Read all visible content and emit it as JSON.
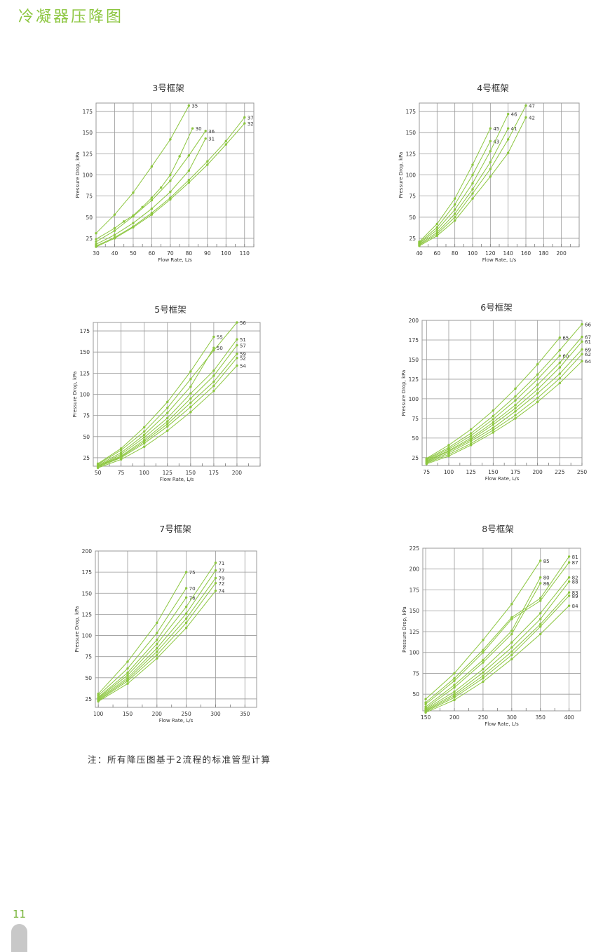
{
  "page_title": "冷凝器压降图",
  "footnote": "注：所有降压图基于2流程的标准管型计算",
  "page_number": "11",
  "colors": {
    "accent": "#8cc63f",
    "line": "#8cc63f",
    "grid": "#999999"
  },
  "chart_data": [
    {
      "type": "line",
      "title": "3号框架",
      "xlabel": "Flow Rate, L/s",
      "ylabel": "Pressure Drop, kPa",
      "xlim": [
        30,
        115
      ],
      "ylim": [
        15,
        185
      ],
      "xticks": [
        30,
        40,
        50,
        60,
        70,
        80,
        90,
        100,
        110
      ],
      "yticks": [
        25,
        50,
        75,
        100,
        125,
        150,
        175
      ],
      "series": [
        {
          "name": "35",
          "x": [
            30,
            40,
            50,
            60,
            70,
            80
          ],
          "y": [
            31,
            53,
            79,
            110,
            142,
            182
          ]
        },
        {
          "name": "30",
          "x": [
            30,
            40,
            45,
            50,
            55,
            60,
            65,
            70,
            75,
            82
          ],
          "y": [
            24,
            37,
            45,
            52,
            62,
            73,
            85,
            100,
            122,
            155
          ]
        },
        {
          "name": "36",
          "x": [
            30,
            40,
            50,
            60,
            70,
            80,
            89
          ],
          "y": [
            21,
            34,
            51,
            70,
            93,
            123,
            152
          ]
        },
        {
          "name": "31",
          "x": [
            30,
            40,
            50,
            60,
            70,
            80,
            89
          ],
          "y": [
            18,
            29,
            43,
            60,
            80,
            105,
            143
          ]
        },
        {
          "name": "37",
          "x": [
            30,
            40,
            50,
            60,
            70,
            80,
            90,
            100,
            110
          ],
          "y": [
            16,
            26,
            39,
            55,
            73,
            94,
            116,
            140,
            168
          ]
        },
        {
          "name": "32",
          "x": [
            30,
            40,
            50,
            60,
            70,
            80,
            90,
            100,
            110
          ],
          "y": [
            15,
            25,
            38,
            53,
            71,
            91,
            112,
            136,
            161
          ]
        }
      ]
    },
    {
      "type": "line",
      "title": "4号框架",
      "xlabel": "Flow Rate, L/s",
      "ylabel": "Pressure Drop, kPa",
      "xlim": [
        40,
        220
      ],
      "ylim": [
        15,
        185
      ],
      "xticks": [
        40,
        60,
        80,
        100,
        120,
        140,
        160,
        180,
        200
      ],
      "yticks": [
        25,
        50,
        75,
        100,
        125,
        150,
        175
      ],
      "series": [
        {
          "name": "45",
          "x": [
            40,
            60,
            80,
            100,
            120
          ],
          "y": [
            21,
            42,
            72,
            112,
            155
          ]
        },
        {
          "name": "43",
          "x": [
            40,
            60,
            80,
            100,
            120
          ],
          "y": [
            20,
            38,
            65,
            100,
            140
          ]
        },
        {
          "name": "46",
          "x": [
            40,
            60,
            80,
            100,
            120,
            140
          ],
          "y": [
            19,
            35,
            59,
            90,
            128,
            172
          ]
        },
        {
          "name": "41",
          "x": [
            40,
            60,
            80,
            100,
            120,
            140
          ],
          "y": [
            18,
            32,
            54,
            83,
            115,
            155
          ]
        },
        {
          "name": "47",
          "x": [
            40,
            60,
            80,
            100,
            120,
            140,
            160
          ],
          "y": [
            17,
            30,
            50,
            78,
            107,
            142,
            182
          ]
        },
        {
          "name": "42",
          "x": [
            40,
            60,
            80,
            100,
            120,
            140,
            160
          ],
          "y": [
            16,
            28,
            46,
            72,
            98,
            126,
            168
          ]
        }
      ]
    },
    {
      "type": "line",
      "title": "5号框架",
      "xlabel": "Flow Rate, L/s",
      "ylabel": "Pressure Drop, kPa",
      "xlim": [
        45,
        225
      ],
      "ylim": [
        15,
        185
      ],
      "xticks": [
        50,
        75,
        100,
        125,
        150,
        175,
        200
      ],
      "yticks": [
        25,
        50,
        75,
        100,
        125,
        150,
        175
      ],
      "series": [
        {
          "name": "55",
          "x": [
            50,
            75,
            100,
            125,
            150,
            175
          ],
          "y": [
            18,
            36,
            61,
            91,
            127,
            168
          ]
        },
        {
          "name": "56",
          "x": [
            50,
            75,
            100,
            125,
            150,
            175,
            200
          ],
          "y": [
            17,
            34,
            56,
            84,
            118,
            152,
            185
          ]
        },
        {
          "name": "50",
          "x": [
            50,
            75,
            100,
            125,
            150,
            175
          ],
          "y": [
            16,
            31,
            52,
            78,
            109,
            155
          ]
        },
        {
          "name": "51",
          "x": [
            50,
            75,
            100,
            125,
            150,
            175,
            200
          ],
          "y": [
            15,
            29,
            49,
            72,
            101,
            128,
            165
          ]
        },
        {
          "name": "57",
          "x": [
            50,
            75,
            100,
            125,
            150,
            175,
            200
          ],
          "y": [
            15,
            27,
            46,
            68,
            95,
            122,
            158
          ]
        },
        {
          "name": "59",
          "x": [
            50,
            75,
            100,
            125,
            150,
            175,
            200
          ],
          "y": [
            14,
            26,
            44,
            65,
            90,
            115,
            148
          ]
        },
        {
          "name": "52",
          "x": [
            50,
            75,
            100,
            125,
            150,
            175,
            200
          ],
          "y": [
            14,
            25,
            42,
            62,
            85,
            110,
            143
          ]
        },
        {
          "name": "54",
          "x": [
            50,
            75,
            100,
            125,
            150,
            175,
            200
          ],
          "y": [
            13,
            23,
            38,
            57,
            79,
            104,
            134
          ]
        }
      ]
    },
    {
      "type": "line",
      "title": "6号框架",
      "xlabel": "Flow Rate, L/s",
      "ylabel": "Pressure Drop, kPa",
      "xlim": [
        70,
        250
      ],
      "ylim": [
        15,
        200
      ],
      "xticks": [
        75,
        100,
        125,
        150,
        175,
        200,
        225,
        250
      ],
      "yticks": [
        25,
        50,
        75,
        100,
        125,
        150,
        175,
        200
      ],
      "series": [
        {
          "name": "65",
          "x": [
            75,
            100,
            125,
            150,
            175,
            200,
            225
          ],
          "y": [
            24,
            41,
            61,
            85,
            113,
            144,
            178
          ]
        },
        {
          "name": "66",
          "x": [
            75,
            100,
            125,
            150,
            175,
            200,
            225,
            250
          ],
          "y": [
            23,
            38,
            56,
            78,
            103,
            131,
            162,
            195
          ]
        },
        {
          "name": "60",
          "x": [
            75,
            100,
            125,
            150,
            175,
            200,
            225
          ],
          "y": [
            22,
            36,
            53,
            74,
            98,
            125,
            155
          ]
        },
        {
          "name": "67",
          "x": [
            75,
            100,
            125,
            150,
            175,
            200,
            225,
            250
          ],
          "y": [
            21,
            34,
            50,
            70,
            92,
            118,
            146,
            179
          ]
        },
        {
          "name": "61",
          "x": [
            75,
            100,
            125,
            150,
            175,
            200,
            225,
            250
          ],
          "y": [
            20,
            33,
            48,
            67,
            88,
            112,
            140,
            173
          ]
        },
        {
          "name": "69",
          "x": [
            75,
            100,
            125,
            150,
            175,
            200,
            225,
            250
          ],
          "y": [
            19,
            31,
            46,
            63,
            84,
            107,
            132,
            163
          ]
        },
        {
          "name": "62",
          "x": [
            75,
            100,
            125,
            150,
            175,
            200,
            225,
            250
          ],
          "y": [
            18,
            29,
            43,
            60,
            79,
            101,
            126,
            157
          ]
        },
        {
          "name": "64",
          "x": [
            75,
            100,
            125,
            150,
            175,
            200,
            225,
            250
          ],
          "y": [
            17,
            27,
            41,
            57,
            75,
            96,
            120,
            148
          ]
        }
      ]
    },
    {
      "type": "line",
      "title": "7号框架",
      "xlabel": "Flow Rate, L/s",
      "ylabel": "Pressure Drop, kPa",
      "xlim": [
        95,
        370
      ],
      "ylim": [
        15,
        200
      ],
      "xticks": [
        100,
        150,
        200,
        250,
        300,
        350
      ],
      "yticks": [
        25,
        50,
        75,
        100,
        125,
        150,
        175,
        200
      ],
      "series": [
        {
          "name": "75",
          "x": [
            100,
            150,
            200,
            250
          ],
          "y": [
            31,
            69,
            115,
            175
          ]
        },
        {
          "name": "70",
          "x": [
            100,
            150,
            200,
            250
          ],
          "y": [
            29,
            61,
            103,
            156
          ]
        },
        {
          "name": "76",
          "x": [
            100,
            150,
            200,
            250
          ],
          "y": [
            27,
            56,
            95,
            145
          ]
        },
        {
          "name": "71",
          "x": [
            100,
            150,
            200,
            250,
            300
          ],
          "y": [
            26,
            53,
            90,
            134,
            186
          ]
        },
        {
          "name": "77",
          "x": [
            100,
            150,
            200,
            250,
            300
          ],
          "y": [
            25,
            50,
            85,
            126,
            177
          ]
        },
        {
          "name": "79",
          "x": [
            100,
            150,
            200,
            250,
            300
          ],
          "y": [
            24,
            48,
            81,
            120,
            168
          ]
        },
        {
          "name": "72",
          "x": [
            100,
            150,
            200,
            250,
            300
          ],
          "y": [
            23,
            46,
            77,
            115,
            162
          ]
        },
        {
          "name": "74",
          "x": [
            100,
            150,
            200,
            250,
            300
          ],
          "y": [
            22,
            43,
            73,
            109,
            153
          ]
        }
      ]
    },
    {
      "type": "line",
      "title": "8号框架",
      "xlabel": "Flow Rate, L/s",
      "ylabel": "Pressure Drop, kPa",
      "xlim": [
        145,
        420
      ],
      "ylim": [
        30,
        225
      ],
      "xticks": [
        150,
        200,
        250,
        300,
        350,
        400
      ],
      "yticks": [
        50,
        75,
        100,
        125,
        150,
        175,
        200,
        225
      ],
      "series": [
        {
          "name": "85",
          "x": [
            150,
            200,
            250,
            300,
            350
          ],
          "y": [
            44,
            75,
            115,
            158,
            210
          ]
        },
        {
          "name": "81",
          "x": [
            150,
            200,
            250,
            300,
            350,
            400
          ],
          "y": [
            40,
            69,
            103,
            142,
            165,
            215
          ]
        },
        {
          "name": "87",
          "x": [
            150,
            200,
            250,
            300,
            350,
            400
          ],
          "y": [
            38,
            66,
            100,
            140,
            162,
            208
          ]
        },
        {
          "name": "80",
          "x": [
            150,
            200,
            250,
            300,
            350
          ],
          "y": [
            35,
            61,
            91,
            126,
            190
          ]
        },
        {
          "name": "86",
          "x": [
            150,
            200,
            250,
            300,
            350
          ],
          "y": [
            33,
            58,
            88,
            122,
            183
          ]
        },
        {
          "name": "82",
          "x": [
            150,
            200,
            250,
            300,
            350,
            400
          ],
          "y": [
            32,
            53,
            80,
            112,
            147,
            190
          ]
        },
        {
          "name": "88",
          "x": [
            150,
            200,
            250,
            300,
            350,
            400
          ],
          "y": [
            31,
            50,
            76,
            106,
            140,
            185
          ]
        },
        {
          "name": "83",
          "x": [
            150,
            200,
            250,
            300,
            350,
            400
          ],
          "y": [
            30,
            48,
            72,
            101,
            134,
            172
          ]
        },
        {
          "name": "89",
          "x": [
            150,
            200,
            250,
            300,
            350,
            400
          ],
          "y": [
            29,
            46,
            69,
            97,
            131,
            168
          ]
        },
        {
          "name": "84",
          "x": [
            150,
            200,
            250,
            300,
            350,
            400
          ],
          "y": [
            28,
            43,
            65,
            92,
            122,
            156
          ]
        }
      ]
    }
  ]
}
